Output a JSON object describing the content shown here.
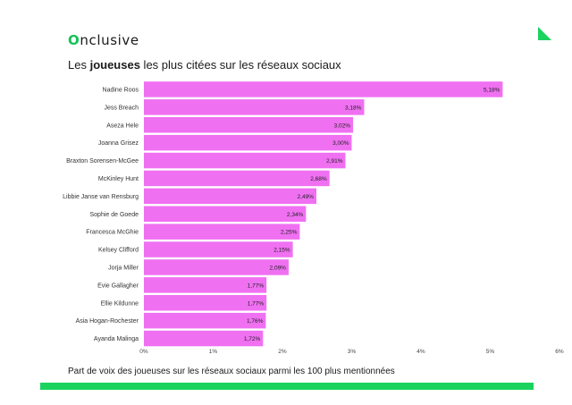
{
  "brand": {
    "logo_first": "O",
    "logo_rest": "nclusive",
    "accent_color": "#19d35e"
  },
  "header": {
    "title_prefix": "Les ",
    "title_bold": "joueuses",
    "title_suffix": " les plus citées sur les réseaux sociaux"
  },
  "footer": {
    "note": "Part de voix des joueuses sur les réseaux sociaux parmi les 100 plus mentionnées"
  },
  "chart_data": {
    "type": "bar",
    "orientation": "horizontal",
    "bar_color": "#f070f2",
    "categories": [
      "Nadine Roos",
      "Jess Breach",
      "Aseza Hele",
      "Joanna Grisez",
      "Braxton Sorensen-McGee",
      "McKinley Hunt",
      "Libbie Janse van Rensburg",
      "Sophie de Goede",
      "Francesca McGhie",
      "Kelsey Clifford",
      "Jorja Miller",
      "Evie Gallagher",
      "Ellie Kildunne",
      "Asia Hogan-Rochester",
      "Ayanda Malinga"
    ],
    "values": [
      5.18,
      3.18,
      3.02,
      3.0,
      2.91,
      2.68,
      2.49,
      2.34,
      2.25,
      2.15,
      2.09,
      1.77,
      1.77,
      1.76,
      1.72
    ],
    "value_labels": [
      "5,18%",
      "3,18%",
      "3,02%",
      "3,00%",
      "2,91%",
      "2,68%",
      "2,49%",
      "2,34%",
      "2,25%",
      "2,15%",
      "2,09%",
      "1,77%",
      "1,77%",
      "1,76%",
      "1,72%"
    ],
    "xlim": [
      0,
      6
    ],
    "xticks": [
      0,
      1,
      2,
      3,
      4,
      5,
      6
    ],
    "xtick_labels": [
      "0%",
      "1%",
      "2%",
      "3%",
      "4%",
      "5%",
      "6%"
    ],
    "grid": false
  }
}
